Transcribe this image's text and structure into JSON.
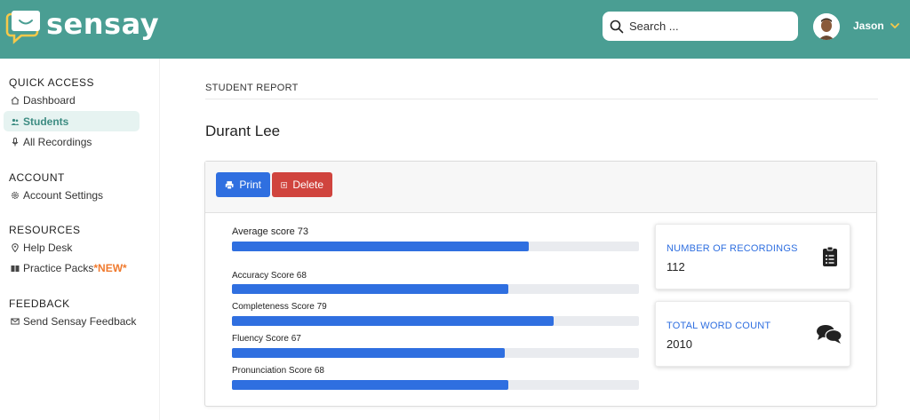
{
  "app": {
    "name": "sensay"
  },
  "header": {
    "search_placeholder": "Search ...",
    "username": "Jason"
  },
  "sidebar": {
    "sections": [
      {
        "title": "QUICK ACCESS",
        "items": [
          {
            "label": "Dashboard",
            "icon": "home-icon"
          },
          {
            "label": "Students",
            "icon": "users-icon",
            "active": true
          },
          {
            "label": "All Recordings",
            "icon": "microphone-icon"
          }
        ]
      },
      {
        "title": "ACCOUNT",
        "items": [
          {
            "label": "Account Settings",
            "icon": "gear-icon"
          }
        ]
      },
      {
        "title": "RESOURCES",
        "items": [
          {
            "label": "Help Desk",
            "icon": "location-pin-icon"
          },
          {
            "label": "Practice Packs",
            "badge": "*NEW*",
            "icon": "book-icon"
          }
        ]
      },
      {
        "title": "FEEDBACK",
        "items": [
          {
            "label": "Send Sensay Feedback",
            "icon": "mail-icon"
          }
        ]
      }
    ]
  },
  "main": {
    "heading": "STUDENT REPORT",
    "student_name": "Durant Lee",
    "buttons": {
      "print": "Print",
      "delete": "Delete"
    },
    "scores": [
      {
        "label": "Average score 73",
        "value": 73
      },
      {
        "label": "Accuracy Score 68",
        "value": 68
      },
      {
        "label": "Completeness Score 79",
        "value": 79
      },
      {
        "label": "Fluency Score 67",
        "value": 67
      },
      {
        "label": "Pronunciation Score 68",
        "value": 68
      }
    ],
    "stats": [
      {
        "title": "NUMBER OF RECORDINGS",
        "value": "112",
        "icon": "clipboard-list-icon"
      },
      {
        "title": "TOTAL WORD COUNT",
        "value": "2010",
        "icon": "comments-icon"
      }
    ]
  },
  "colors": {
    "header_bg": "#4a9e93",
    "primary": "#2f6fe0",
    "danger": "#d0443e",
    "accent_new": "#f07a2e"
  }
}
